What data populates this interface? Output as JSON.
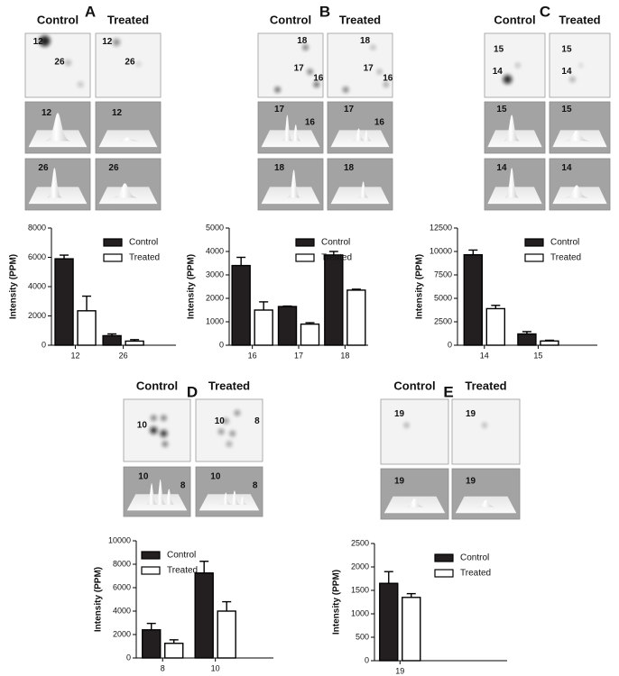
{
  "chart_data": [
    {
      "type": "bar",
      "panel": "A",
      "image_headers": [
        "Control",
        "Treated"
      ],
      "gel_labels": [
        [
          "12",
          "26"
        ],
        [
          "12",
          "26"
        ]
      ],
      "surface_labels": [
        [
          [
            "12"
          ],
          [
            "12"
          ]
        ],
        [
          [
            "26"
          ],
          [
            "26"
          ]
        ]
      ],
      "ylabel": "Intensity (PPM)",
      "categories": [
        "12",
        "26"
      ],
      "series": [
        {
          "name": "Control",
          "color": "#231f20",
          "values": [
            5900,
            650
          ],
          "errors": [
            250,
            120
          ]
        },
        {
          "name": "Treated",
          "color": "#ffffff",
          "values": [
            2350,
            280
          ],
          "errors": [
            1000,
            100
          ]
        }
      ],
      "ylim": [
        0,
        8000
      ],
      "yticks": [
        0,
        2000,
        4000,
        6000,
        8000
      ],
      "legend": "upper right"
    },
    {
      "type": "bar",
      "panel": "B",
      "image_headers": [
        "Control",
        "Treated"
      ],
      "gel_labels": [
        [
          "18",
          "17",
          "16"
        ],
        [
          "18",
          "17",
          "16"
        ]
      ],
      "surface_labels": [
        [
          [
            "17",
            "16"
          ],
          [
            "17",
            "16"
          ]
        ],
        [
          [
            "18"
          ],
          [
            "18"
          ]
        ]
      ],
      "ylabel": "Intensity (PPM)",
      "categories": [
        "16",
        "17",
        "18"
      ],
      "series": [
        {
          "name": "Control",
          "color": "#231f20",
          "values": [
            3400,
            1650,
            3850
          ],
          "errors": [
            350,
            20,
            150
          ]
        },
        {
          "name": "Treated",
          "color": "#ffffff",
          "values": [
            1500,
            900,
            2350
          ],
          "errors": [
            350,
            60,
            40
          ]
        }
      ],
      "ylim": [
        0,
        5000
      ],
      "yticks": [
        0,
        1000,
        2000,
        3000,
        4000,
        5000
      ],
      "legend": "upper right"
    },
    {
      "type": "bar",
      "panel": "C",
      "image_headers": [
        "Control",
        "Treated"
      ],
      "gel_labels": [
        [
          "15",
          "14"
        ],
        [
          "15",
          "14"
        ]
      ],
      "surface_labels": [
        [
          [
            "15"
          ],
          [
            "15"
          ]
        ],
        [
          [
            "14"
          ],
          [
            "14"
          ]
        ]
      ],
      "ylabel": "Intensity (PPM)",
      "categories": [
        "14",
        "15"
      ],
      "series": [
        {
          "name": "Control",
          "color": "#231f20",
          "values": [
            9650,
            1200
          ],
          "errors": [
            500,
            250
          ]
        },
        {
          "name": "Treated",
          "color": "#ffffff",
          "values": [
            3900,
            450
          ],
          "errors": [
            350,
            80
          ]
        }
      ],
      "ylim": [
        0,
        12500
      ],
      "yticks": [
        0,
        2500,
        5000,
        7500,
        10000,
        12500
      ],
      "legend": "upper right"
    },
    {
      "type": "bar",
      "panel": "D",
      "image_headers": [
        "Control",
        "Treated"
      ],
      "gel_labels": [
        [
          "10"
        ],
        [
          "10",
          "8"
        ]
      ],
      "surface_labels": [
        [
          [
            "10",
            "8"
          ],
          [
            "10",
            "8"
          ]
        ]
      ],
      "ylabel": "Intensity (PPM)",
      "categories": [
        "8",
        "10"
      ],
      "series": [
        {
          "name": "Control",
          "color": "#231f20",
          "values": [
            2400,
            7250
          ],
          "errors": [
            550,
            1000
          ]
        },
        {
          "name": "Treated",
          "color": "#ffffff",
          "values": [
            1250,
            4000
          ],
          "errors": [
            300,
            800
          ]
        }
      ],
      "ylim": [
        0,
        10000
      ],
      "yticks": [
        0,
        2000,
        4000,
        6000,
        8000,
        10000
      ],
      "legend": "upper left"
    },
    {
      "type": "bar",
      "panel": "E",
      "image_headers": [
        "Control",
        "Treated"
      ],
      "gel_labels": [
        [
          "19"
        ],
        [
          "19"
        ]
      ],
      "surface_labels": [
        [
          [
            "19"
          ],
          [
            "19"
          ]
        ]
      ],
      "ylabel": "Intensity (PPM)",
      "categories": [
        "19"
      ],
      "series": [
        {
          "name": "Control",
          "color": "#231f20",
          "values": [
            1650
          ],
          "errors": [
            250
          ]
        },
        {
          "name": "Treated",
          "color": "#ffffff",
          "values": [
            1350
          ],
          "errors": [
            80
          ]
        }
      ],
      "ylim": [
        0,
        2500
      ],
      "yticks": [
        0,
        500,
        1000,
        1500,
        2000,
        2500
      ],
      "legend": "upper right"
    }
  ]
}
